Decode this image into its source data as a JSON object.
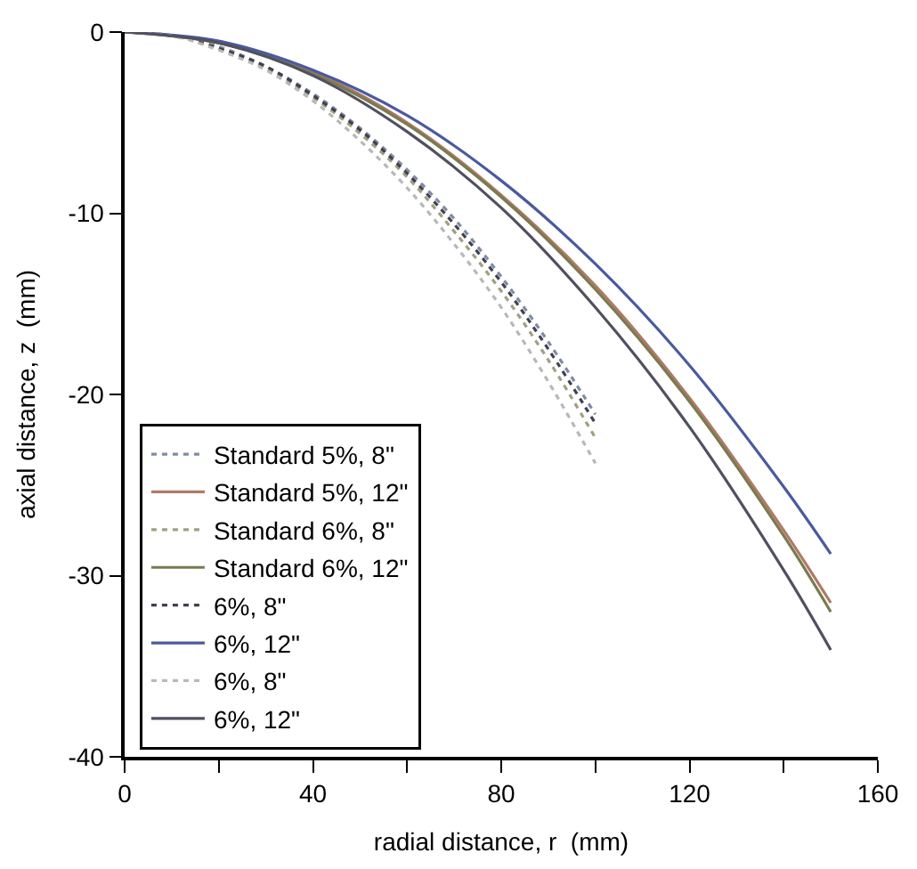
{
  "chart_data": {
    "type": "line",
    "xlabel": "radial distance, r  (mm)",
    "ylabel": "axial distance, z  (mm)",
    "xlim": [
      0,
      160
    ],
    "ylim": [
      -40,
      0
    ],
    "xticks": [
      0,
      {
        "value": 20,
        "label": null
      },
      40,
      {
        "value": 60,
        "label": null
      },
      80,
      {
        "value": 100,
        "label": null
      },
      120,
      {
        "value": 140,
        "label": null
      },
      160
    ],
    "yticks": [
      0,
      -10,
      -20,
      -30,
      -40
    ],
    "legend": "bottom left",
    "marker": "none",
    "series": [
      {
        "name": "Standard 5%, 8\"",
        "color": "#7f8aa8",
        "line_style": "dotted",
        "x": [
          0,
          10,
          20,
          30,
          40,
          50,
          60,
          70,
          80,
          90,
          100
        ],
        "values": [
          0,
          -0.2,
          -0.8,
          -1.9,
          -3.4,
          -5.3,
          -7.6,
          -10.3,
          -13.5,
          -17.1,
          -21.1
        ]
      },
      {
        "name": "Standard 5%, 12\"",
        "color": "#b07a66",
        "line_style": "solid",
        "x": [
          0,
          20,
          40,
          60,
          80,
          100,
          120,
          140,
          150
        ],
        "values": [
          0,
          -0.6,
          -2.2,
          -5.0,
          -9.0,
          -14.0,
          -20.2,
          -27.5,
          -31.5
        ]
      },
      {
        "name": "Standard 6%, 8\"",
        "color": "#a0a080",
        "line_style": "dotted",
        "x": [
          0,
          10,
          20,
          30,
          40,
          50,
          60,
          70,
          80,
          90,
          100
        ],
        "values": [
          0,
          -0.2,
          -0.9,
          -2.0,
          -3.6,
          -5.6,
          -8.0,
          -11.0,
          -14.3,
          -18.1,
          -22.4
        ]
      },
      {
        "name": "Standard 6%, 12\"",
        "color": "#7a7a50",
        "line_style": "solid",
        "x": [
          0,
          20,
          40,
          60,
          80,
          100,
          120,
          140,
          150
        ],
        "values": [
          0,
          -0.6,
          -2.3,
          -5.1,
          -9.1,
          -14.2,
          -20.4,
          -27.8,
          -32.0
        ]
      },
      {
        "name": "6%, 8\"",
        "color": "#404050",
        "line_style": "dotted",
        "x": [
          0,
          10,
          20,
          30,
          40,
          50,
          60,
          70,
          80,
          90,
          100
        ],
        "values": [
          0,
          -0.2,
          -0.9,
          -1.9,
          -3.5,
          -5.4,
          -7.8,
          -10.6,
          -13.8,
          -17.5,
          -21.6
        ]
      },
      {
        "name": "6%, 12\"",
        "color": "#4a5aa0",
        "line_style": "solid",
        "x": [
          0,
          20,
          40,
          60,
          80,
          100,
          120,
          140,
          150
        ],
        "values": [
          0,
          -0.5,
          -2.1,
          -4.6,
          -8.2,
          -12.8,
          -18.4,
          -25.1,
          -28.8
        ]
      },
      {
        "name": "6%, 8\"",
        "color": "#b8b8b8",
        "line_style": "dotted",
        "x": [
          0,
          10,
          20,
          30,
          40,
          50,
          60,
          70,
          80,
          90,
          100
        ],
        "values": [
          0,
          -0.2,
          -1.0,
          -2.1,
          -3.8,
          -6.0,
          -8.6,
          -11.7,
          -15.2,
          -19.3,
          -23.8
        ]
      },
      {
        "name": "6%, 12\"",
        "color": "#505060",
        "line_style": "solid",
        "x": [
          0,
          20,
          40,
          60,
          80,
          100,
          120,
          140,
          150
        ],
        "values": [
          0,
          -0.6,
          -2.4,
          -5.5,
          -9.7,
          -15.2,
          -21.8,
          -29.7,
          -34.1
        ]
      }
    ]
  }
}
